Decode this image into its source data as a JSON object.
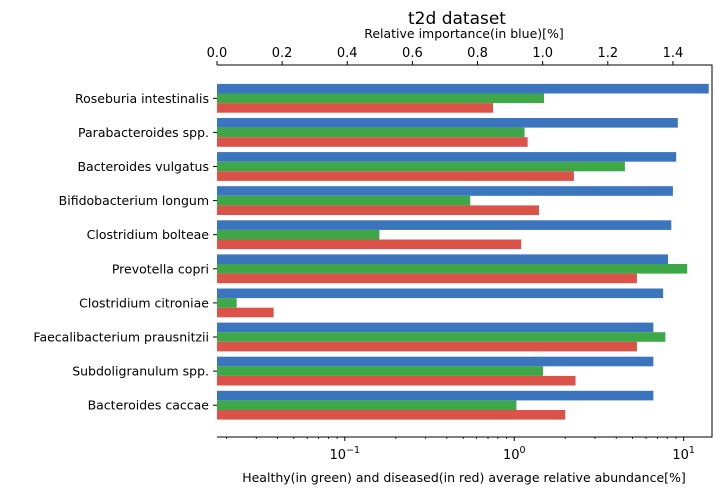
{
  "chart_data": {
    "type": "bar",
    "orientation": "horizontal",
    "title": "t2d dataset",
    "top_axis_label": "Relative importance(in blue)[%]",
    "bottom_axis_label": "Healthy(in green) and diseased(in red) average relative abundance[%]",
    "top_axis": {
      "scale": "linear",
      "range": [
        0,
        1.52
      ],
      "ticks": [
        "0.0",
        "0.2",
        "0.4",
        "0.6",
        "0.8",
        "1.0",
        "1.2",
        "1.4"
      ],
      "tick_values": [
        0,
        0.2,
        0.4,
        0.6,
        0.8,
        1.0,
        1.2,
        1.4
      ]
    },
    "bottom_axis": {
      "scale": "log",
      "range": [
        0.0176,
        14.7
      ],
      "ticks": [
        {
          "base": "10",
          "exp": "−1",
          "value": 0.1
        },
        {
          "base": "10",
          "exp": "0",
          "value": 1
        },
        {
          "base": "10",
          "exp": "1",
          "value": 10
        }
      ]
    },
    "categories": [
      "Roseburia intestinalis",
      "Parabacteroides spp.",
      "Bacteroides vulgatus",
      "Bifidobacterium longum",
      "Clostridium bolteae",
      "Prevotella copri",
      "Clostridium citroniae",
      "Faecalibacterium prausnitzii",
      "Subdoligranulum spp.",
      "Bacteroides caccae"
    ],
    "series": [
      {
        "name": "Relative importance",
        "axis": "top",
        "color": "#3b75bd",
        "values": [
          1.51,
          1.415,
          1.41,
          1.4,
          1.395,
          1.385,
          1.37,
          1.34,
          1.34,
          1.34
        ]
      },
      {
        "name": "Healthy average relative abundance",
        "axis": "bottom",
        "color": "#3ea849",
        "values": [
          1.5,
          1.15,
          4.5,
          0.55,
          0.16,
          10.5,
          0.023,
          7.8,
          1.48,
          1.03
        ]
      },
      {
        "name": "Diseased average relative abundance",
        "axis": "bottom",
        "color": "#db5248",
        "values": [
          0.75,
          1.2,
          2.25,
          1.4,
          1.1,
          5.3,
          0.038,
          5.3,
          2.3,
          2.0
        ]
      }
    ]
  }
}
